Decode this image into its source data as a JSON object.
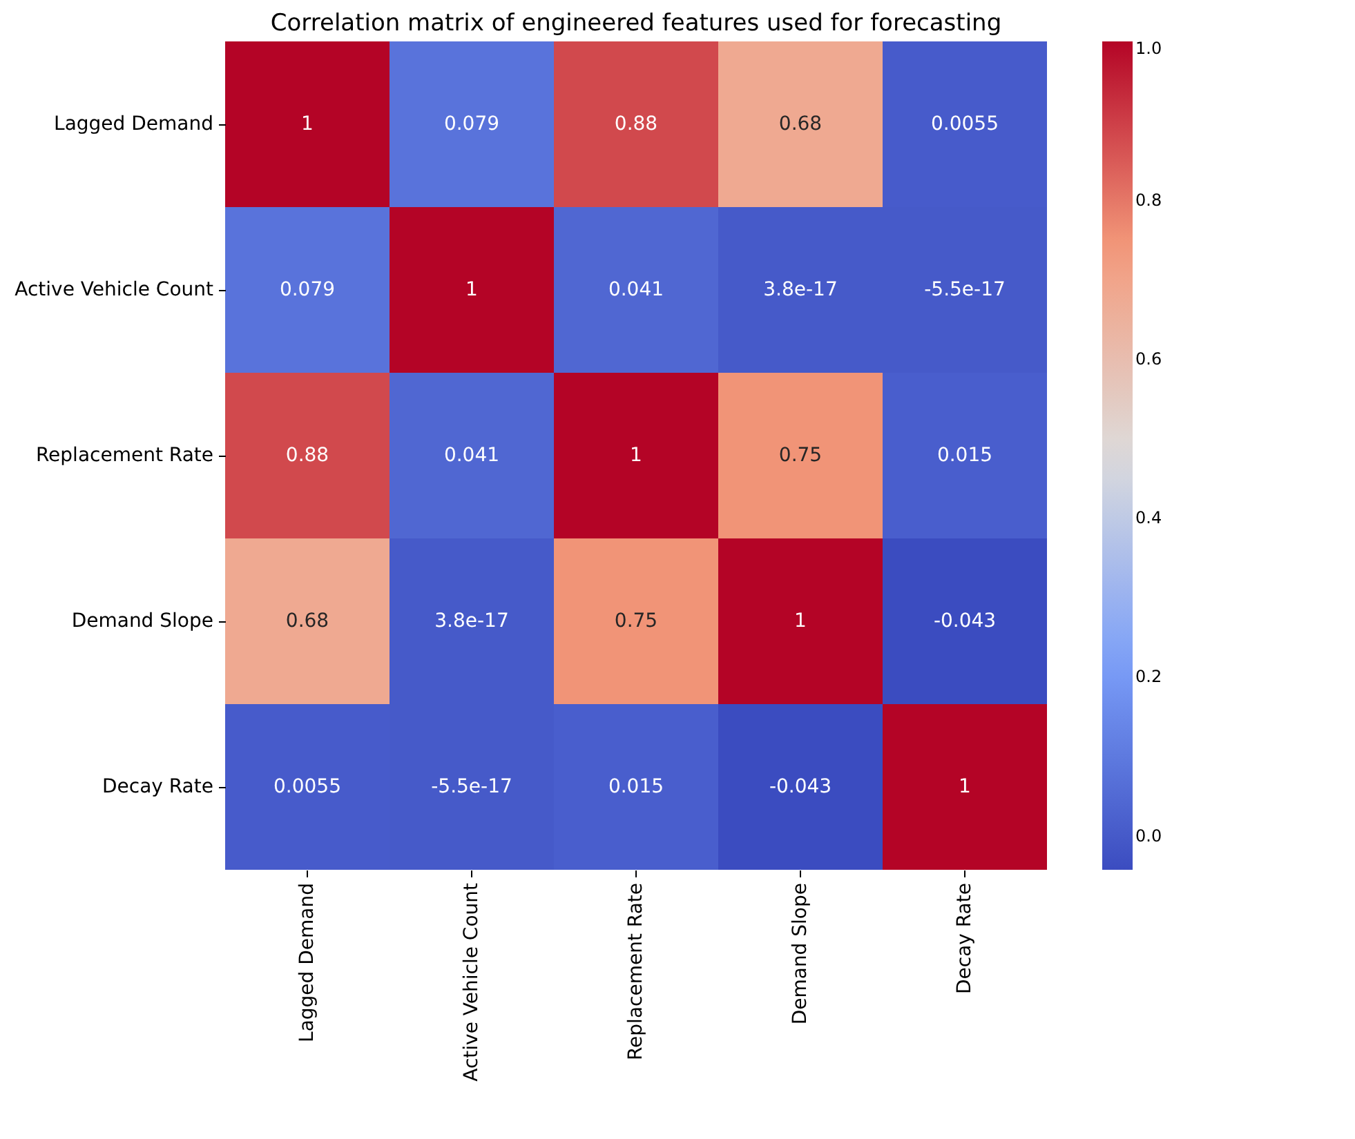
{
  "chart_data": {
    "type": "heatmap",
    "title": "Correlation matrix of engineered features used for forecasting",
    "categories": [
      "Lagged Demand",
      "Active Vehicle Count",
      "Replacement Rate",
      "Demand Slope",
      "Decay Rate"
    ],
    "y_categories": [
      "Lagged Demand ",
      "Active Vehicle Count",
      "Replacement Rate",
      "Demand Slope",
      "Decay Rate"
    ],
    "cells": [
      [
        1,
        0.079,
        0.88,
        0.68,
        0.0055
      ],
      [
        0.079,
        1,
        0.041,
        3.8e-17,
        -5.5e-17
      ],
      [
        0.88,
        0.041,
        1,
        0.75,
        0.015
      ],
      [
        0.68,
        3.8e-17,
        0.75,
        1,
        -0.043
      ],
      [
        0.0055,
        -5.5e-17,
        0.015,
        -0.043,
        1
      ]
    ],
    "data_labels": true,
    "clim": [
      -0.043,
      1
    ],
    "cticks": [
      {
        "value": 0,
        "label": "0.0"
      },
      {
        "value": 0.2,
        "label": "0.2"
      },
      {
        "value": 0.4,
        "label": "0.4"
      },
      {
        "value": 0.6,
        "label": "0.6"
      },
      {
        "value": 0.8,
        "label": "0.8"
      },
      {
        "value": 1,
        "label": "1.0"
      }
    ]
  }
}
